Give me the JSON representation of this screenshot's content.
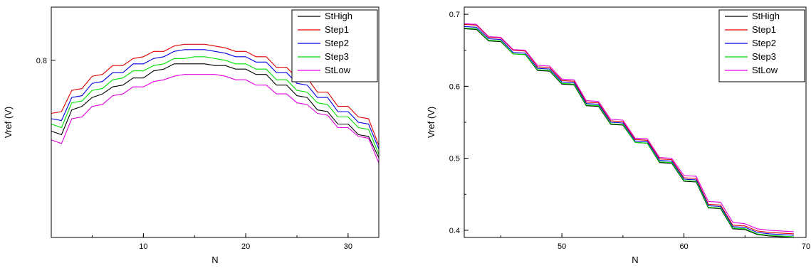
{
  "chart_data": [
    {
      "type": "line",
      "xlabel": "N",
      "ylabel": "Vref (V)",
      "xlim": [
        1,
        33
      ],
      "ylim": [
        0.7,
        0.83
      ],
      "xticks": [
        10,
        20,
        30
      ],
      "xtick_labels": [
        "10",
        "20",
        "30"
      ],
      "yticks": [
        0.8
      ],
      "ytick_labels": [
        "0.8"
      ],
      "legend_position": "top-right",
      "x": [
        1,
        2,
        3,
        4,
        5,
        6,
        7,
        8,
        9,
        10,
        11,
        12,
        13,
        14,
        15,
        16,
        17,
        18,
        19,
        20,
        21,
        22,
        23,
        24,
        25,
        26,
        27,
        28,
        29,
        30,
        31,
        32,
        33
      ],
      "series": [
        {
          "name": "StHigh",
          "color": "#000000",
          "values": [
            0.76,
            0.758,
            0.772,
            0.774,
            0.779,
            0.781,
            0.785,
            0.786,
            0.79,
            0.79,
            0.794,
            0.795,
            0.798,
            0.798,
            0.798,
            0.798,
            0.797,
            0.797,
            0.795,
            0.795,
            0.792,
            0.792,
            0.786,
            0.786,
            0.78,
            0.779,
            0.772,
            0.771,
            0.764,
            0.764,
            0.758,
            0.757,
            0.745
          ]
        },
        {
          "name": "Step1",
          "color": "#e00000",
          "values": [
            0.77,
            0.771,
            0.783,
            0.784,
            0.791,
            0.792,
            0.797,
            0.797,
            0.801,
            0.802,
            0.805,
            0.805,
            0.808,
            0.809,
            0.809,
            0.809,
            0.808,
            0.807,
            0.805,
            0.805,
            0.802,
            0.802,
            0.796,
            0.796,
            0.79,
            0.79,
            0.782,
            0.782,
            0.774,
            0.774,
            0.768,
            0.767,
            0.752
          ]
        },
        {
          "name": "Step2",
          "color": "#0000e0",
          "values": [
            0.767,
            0.766,
            0.779,
            0.78,
            0.787,
            0.788,
            0.793,
            0.793,
            0.798,
            0.798,
            0.801,
            0.802,
            0.805,
            0.806,
            0.806,
            0.806,
            0.805,
            0.804,
            0.802,
            0.802,
            0.799,
            0.799,
            0.793,
            0.793,
            0.787,
            0.786,
            0.779,
            0.779,
            0.771,
            0.771,
            0.765,
            0.764,
            0.75
          ]
        },
        {
          "name": "Step3",
          "color": "#00e000",
          "values": [
            0.764,
            0.762,
            0.776,
            0.777,
            0.783,
            0.784,
            0.789,
            0.79,
            0.794,
            0.794,
            0.797,
            0.798,
            0.801,
            0.801,
            0.802,
            0.802,
            0.801,
            0.8,
            0.798,
            0.798,
            0.795,
            0.795,
            0.789,
            0.789,
            0.783,
            0.782,
            0.776,
            0.775,
            0.768,
            0.768,
            0.762,
            0.761,
            0.747
          ]
        },
        {
          "name": "StLow",
          "color": "#e000e0",
          "values": [
            0.755,
            0.753,
            0.767,
            0.768,
            0.774,
            0.775,
            0.78,
            0.781,
            0.785,
            0.785,
            0.788,
            0.789,
            0.791,
            0.792,
            0.792,
            0.792,
            0.792,
            0.791,
            0.789,
            0.789,
            0.786,
            0.786,
            0.781,
            0.781,
            0.776,
            0.775,
            0.77,
            0.769,
            0.762,
            0.762,
            0.757,
            0.756,
            0.742
          ]
        }
      ]
    },
    {
      "type": "line",
      "xlabel": "N",
      "ylabel": "Vref (V)",
      "xlim": [
        42,
        70
      ],
      "ylim": [
        0.39,
        0.71
      ],
      "xticks": [
        50,
        60,
        70
      ],
      "xtick_labels": [
        "50",
        "60",
        "70"
      ],
      "yticks": [
        0.4,
        0.5,
        0.6,
        0.7
      ],
      "ytick_labels": [
        "0.4",
        "0.5",
        "0.6",
        "0.7"
      ],
      "legend_position": "top-right",
      "x": [
        42,
        43,
        44,
        45,
        46,
        47,
        48,
        49,
        50,
        51,
        52,
        53,
        54,
        55,
        56,
        57,
        58,
        59,
        60,
        61,
        62,
        63,
        64,
        65,
        66,
        67,
        68,
        69
      ],
      "series": [
        {
          "name": "StHigh",
          "color": "#000000",
          "values": [
            0.68,
            0.679,
            0.663,
            0.662,
            0.645,
            0.644,
            0.622,
            0.621,
            0.603,
            0.602,
            0.573,
            0.572,
            0.547,
            0.546,
            0.522,
            0.521,
            0.494,
            0.493,
            0.468,
            0.467,
            0.431,
            0.43,
            0.402,
            0.401,
            0.394,
            0.392,
            0.391,
            0.39
          ]
        },
        {
          "name": "Step1",
          "color": "#e00000",
          "values": [
            0.686,
            0.685,
            0.668,
            0.667,
            0.65,
            0.649,
            0.627,
            0.626,
            0.608,
            0.607,
            0.578,
            0.577,
            0.552,
            0.551,
            0.526,
            0.525,
            0.499,
            0.498,
            0.473,
            0.472,
            0.436,
            0.435,
            0.407,
            0.406,
            0.399,
            0.397,
            0.396,
            0.395
          ]
        },
        {
          "name": "Step2",
          "color": "#0000e0",
          "values": [
            0.683,
            0.682,
            0.666,
            0.665,
            0.647,
            0.646,
            0.625,
            0.624,
            0.606,
            0.605,
            0.576,
            0.575,
            0.55,
            0.549,
            0.524,
            0.523,
            0.497,
            0.496,
            0.471,
            0.47,
            0.434,
            0.433,
            0.405,
            0.404,
            0.397,
            0.395,
            0.394,
            0.393
          ]
        },
        {
          "name": "Step3",
          "color": "#00e000",
          "values": [
            0.681,
            0.68,
            0.664,
            0.663,
            0.645,
            0.644,
            0.623,
            0.622,
            0.604,
            0.603,
            0.574,
            0.573,
            0.548,
            0.547,
            0.522,
            0.521,
            0.495,
            0.494,
            0.469,
            0.468,
            0.432,
            0.431,
            0.403,
            0.402,
            0.395,
            0.393,
            0.392,
            0.391
          ]
        },
        {
          "name": "StLow",
          "color": "#e000e0",
          "values": [
            0.687,
            0.686,
            0.669,
            0.668,
            0.651,
            0.65,
            0.629,
            0.628,
            0.61,
            0.609,
            0.58,
            0.579,
            0.554,
            0.553,
            0.528,
            0.527,
            0.501,
            0.5,
            0.476,
            0.475,
            0.44,
            0.439,
            0.411,
            0.409,
            0.402,
            0.4,
            0.399,
            0.398
          ]
        }
      ]
    }
  ]
}
